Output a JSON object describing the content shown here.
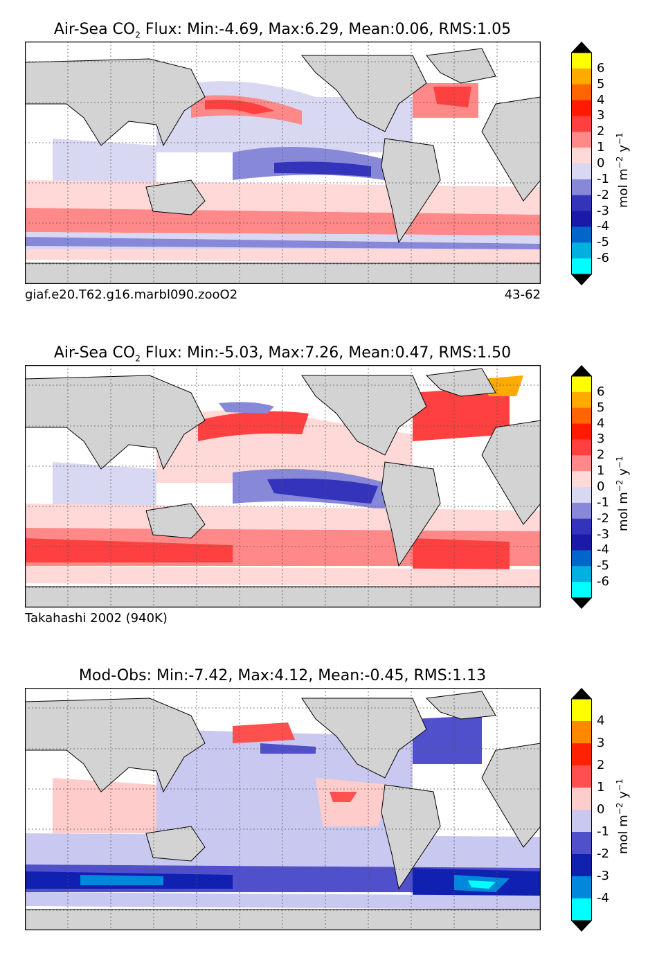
{
  "panels": [
    {
      "title_prefix": "Air-Sea CO",
      "title_sub": "2",
      "title_suffix": " Flux: Min:-4.69, Max:6.29, Mean:0.06, RMS:1.05",
      "footer_left": "giaf.e20.T62.g16.marbl090.zooO2",
      "footer_right": "43-62",
      "colorbar": {
        "ticks": [
          "6",
          "5",
          "4",
          "3",
          "2",
          "1",
          "0",
          "-1",
          "-2",
          "-3",
          "-4",
          "-5",
          "-6"
        ],
        "unit_main": "mol m",
        "unit_exp1": "−2",
        "unit_mid": " y",
        "unit_exp2": "−1",
        "colors": [
          "#ffff00",
          "#ffaa00",
          "#ff6600",
          "#ff1a00",
          "#ff4040",
          "#ff8888",
          "#ffd8d8",
          "#d8d8f2",
          "#8888d8",
          "#3333bb",
          "#1a1aaa",
          "#0066cc",
          "#00b0e0",
          "#00ffff"
        ]
      }
    },
    {
      "title_prefix": "Air-Sea CO",
      "title_sub": "2",
      "title_suffix": " Flux: Min:-5.03, Max:7.26, Mean:0.47, RMS:1.50",
      "footer_left": "Takahashi 2002 (940K)",
      "footer_right": "",
      "colorbar": {
        "ticks": [
          "6",
          "5",
          "4",
          "3",
          "2",
          "1",
          "0",
          "-1",
          "-2",
          "-3",
          "-4",
          "-5",
          "-6"
        ],
        "unit_main": "mol m",
        "unit_exp1": "−2",
        "unit_mid": " y",
        "unit_exp2": "−1",
        "colors": [
          "#ffff00",
          "#ffaa00",
          "#ff6600",
          "#ff1a00",
          "#ff4040",
          "#ff8888",
          "#ffd8d8",
          "#d8d8f2",
          "#8888d8",
          "#3333bb",
          "#1a1aaa",
          "#0066cc",
          "#00b0e0",
          "#00ffff"
        ]
      }
    },
    {
      "title_prefix": "Mod-Obs: Min:-7.42, Max:4.12, Mean:-0.45, RMS:1.13",
      "title_sub": "",
      "title_suffix": "",
      "footer_left": "",
      "footer_right": "",
      "colorbar": {
        "ticks": [
          "4",
          "3",
          "2",
          "1",
          "0",
          "-1",
          "-2",
          "-3",
          "-4"
        ],
        "unit_main": "mol m",
        "unit_exp1": "−2",
        "unit_mid": " y",
        "unit_exp2": "−1",
        "colors": [
          "#ffff00",
          "#ff8800",
          "#ff2200",
          "#ff5050",
          "#ffcccc",
          "#c8c8f0",
          "#5050cc",
          "#1020b0",
          "#0088dd",
          "#00ffff"
        ]
      }
    }
  ],
  "map_colors": {
    "land": "#d3d3d3",
    "coast": "#000000",
    "grid": "#555555",
    "light_red": "#ffd8d8",
    "mid_red": "#ff8888",
    "red": "#ff4040",
    "light_blue": "#d8d8f2",
    "mid_blue": "#8888d8",
    "blue": "#3333bb",
    "cyan": "#00ffff"
  }
}
